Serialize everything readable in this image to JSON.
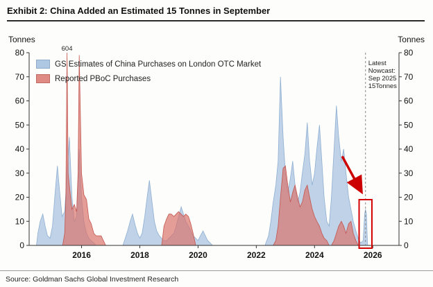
{
  "source": "Source: Goldman Sachs Global Investment Research",
  "chart_data": {
    "type": "area",
    "title": "Exhibit 2: China Added an Estimated 15 Tonnes in September",
    "ylabel_left": "Tonnes",
    "ylabel_right": "Tonnes",
    "ylim": [
      0,
      80
    ],
    "y_ticks": [
      0,
      10,
      20,
      30,
      40,
      50,
      60,
      70,
      80
    ],
    "x_ticks": [
      2016,
      2018,
      2020,
      2022,
      2024,
      2026
    ],
    "x_range": [
      2014.2,
      2026.9
    ],
    "grid": false,
    "legend_position": "top-left",
    "series": [
      {
        "name": "GS Estimates of China Purchases on London OTC Market",
        "color": "#a9c3e0",
        "edge": "#8fafd2",
        "opacity": 0.75,
        "points": [
          [
            2014.45,
            0
          ],
          [
            2014.5,
            5
          ],
          [
            2014.58,
            10
          ],
          [
            2014.67,
            13
          ],
          [
            2014.75,
            8
          ],
          [
            2014.83,
            4
          ],
          [
            2014.92,
            3
          ],
          [
            2015.0,
            8
          ],
          [
            2015.08,
            20
          ],
          [
            2015.17,
            33
          ],
          [
            2015.25,
            22
          ],
          [
            2015.33,
            12
          ],
          [
            2015.42,
            14
          ],
          [
            2015.5,
            30
          ],
          [
            2015.58,
            45
          ],
          [
            2015.67,
            20
          ],
          [
            2015.75,
            10
          ],
          [
            2015.83,
            12
          ],
          [
            2015.92,
            40
          ],
          [
            2016.0,
            20
          ],
          [
            2016.08,
            10
          ],
          [
            2016.17,
            5
          ],
          [
            2016.25,
            3
          ],
          [
            2016.33,
            2
          ],
          [
            2016.42,
            1
          ],
          [
            2016.5,
            0
          ],
          [
            2017.42,
            0
          ],
          [
            2017.5,
            3
          ],
          [
            2017.58,
            6
          ],
          [
            2017.67,
            10
          ],
          [
            2017.75,
            13
          ],
          [
            2017.83,
            9
          ],
          [
            2017.92,
            5
          ],
          [
            2018.0,
            3
          ],
          [
            2018.08,
            5
          ],
          [
            2018.17,
            12
          ],
          [
            2018.25,
            20
          ],
          [
            2018.33,
            27
          ],
          [
            2018.42,
            18
          ],
          [
            2018.5,
            10
          ],
          [
            2018.58,
            6
          ],
          [
            2018.67,
            4
          ],
          [
            2018.75,
            3
          ],
          [
            2018.83,
            2
          ],
          [
            2018.92,
            2
          ],
          [
            2019.0,
            3
          ],
          [
            2019.08,
            4
          ],
          [
            2019.17,
            5
          ],
          [
            2019.25,
            8
          ],
          [
            2019.33,
            12
          ],
          [
            2019.42,
            16
          ],
          [
            2019.5,
            13
          ],
          [
            2019.58,
            10
          ],
          [
            2019.67,
            8
          ],
          [
            2019.75,
            6
          ],
          [
            2019.83,
            4
          ],
          [
            2019.92,
            3
          ],
          [
            2020.0,
            2
          ],
          [
            2020.08,
            4
          ],
          [
            2020.17,
            6
          ],
          [
            2020.25,
            4
          ],
          [
            2020.33,
            2
          ],
          [
            2020.42,
            1
          ],
          [
            2020.5,
            0
          ],
          [
            2022.3,
            0
          ],
          [
            2022.42,
            4
          ],
          [
            2022.5,
            10
          ],
          [
            2022.58,
            18
          ],
          [
            2022.67,
            25
          ],
          [
            2022.75,
            35
          ],
          [
            2022.83,
            70
          ],
          [
            2022.92,
            45
          ],
          [
            2023.0,
            30
          ],
          [
            2023.08,
            22
          ],
          [
            2023.17,
            28
          ],
          [
            2023.25,
            35
          ],
          [
            2023.33,
            25
          ],
          [
            2023.42,
            18
          ],
          [
            2023.5,
            22
          ],
          [
            2023.58,
            30
          ],
          [
            2023.67,
            38
          ],
          [
            2023.75,
            51
          ],
          [
            2023.83,
            35
          ],
          [
            2023.92,
            25
          ],
          [
            2024.0,
            30
          ],
          [
            2024.08,
            40
          ],
          [
            2024.17,
            50
          ],
          [
            2024.25,
            35
          ],
          [
            2024.33,
            20
          ],
          [
            2024.42,
            10
          ],
          [
            2024.5,
            8
          ],
          [
            2024.58,
            20
          ],
          [
            2024.67,
            40
          ],
          [
            2024.75,
            58
          ],
          [
            2024.83,
            45
          ],
          [
            2024.92,
            35
          ],
          [
            2025.0,
            40
          ],
          [
            2025.08,
            30
          ],
          [
            2025.17,
            20
          ],
          [
            2025.25,
            15
          ],
          [
            2025.33,
            10
          ],
          [
            2025.42,
            6
          ],
          [
            2025.5,
            3
          ],
          [
            2025.58,
            1
          ],
          [
            2025.67,
            2
          ],
          [
            2025.72,
            13
          ],
          [
            2025.75,
            15
          ],
          [
            2025.78,
            13
          ],
          [
            2025.82,
            0
          ]
        ]
      },
      {
        "name": "Reported PBoC Purchases",
        "color": "#d9736c",
        "edge": "#c2564f",
        "opacity": 0.7,
        "points": [
          [
            2015.35,
            0
          ],
          [
            2015.42,
            5
          ],
          [
            2015.46,
            20
          ],
          [
            2015.5,
            604
          ],
          [
            2015.54,
            30
          ],
          [
            2015.58,
            25
          ],
          [
            2015.67,
            15
          ],
          [
            2015.75,
            17
          ],
          [
            2015.83,
            14
          ],
          [
            2015.88,
            30
          ],
          [
            2015.92,
            79
          ],
          [
            2016.0,
            30
          ],
          [
            2016.08,
            21
          ],
          [
            2016.17,
            19
          ],
          [
            2016.25,
            11
          ],
          [
            2016.33,
            9
          ],
          [
            2016.42,
            5
          ],
          [
            2016.5,
            4
          ],
          [
            2016.58,
            4
          ],
          [
            2016.67,
            4
          ],
          [
            2016.75,
            2
          ],
          [
            2016.83,
            0
          ],
          [
            2018.75,
            0
          ],
          [
            2018.83,
            8
          ],
          [
            2018.92,
            11
          ],
          [
            2019.0,
            13
          ],
          [
            2019.08,
            13
          ],
          [
            2019.17,
            12
          ],
          [
            2019.25,
            13
          ],
          [
            2019.33,
            14
          ],
          [
            2019.42,
            13
          ],
          [
            2019.5,
            12
          ],
          [
            2019.58,
            13
          ],
          [
            2019.67,
            12
          ],
          [
            2019.75,
            9
          ],
          [
            2019.83,
            5
          ],
          [
            2019.92,
            0
          ],
          [
            2022.58,
            0
          ],
          [
            2022.67,
            2
          ],
          [
            2022.75,
            8
          ],
          [
            2022.83,
            20
          ],
          [
            2022.92,
            32
          ],
          [
            2023.0,
            33
          ],
          [
            2023.08,
            25
          ],
          [
            2023.17,
            18
          ],
          [
            2023.25,
            22
          ],
          [
            2023.33,
            25
          ],
          [
            2023.42,
            20
          ],
          [
            2023.5,
            16
          ],
          [
            2023.58,
            18
          ],
          [
            2023.67,
            23
          ],
          [
            2023.75,
            25
          ],
          [
            2023.83,
            20
          ],
          [
            2023.92,
            15
          ],
          [
            2024.0,
            12
          ],
          [
            2024.08,
            10
          ],
          [
            2024.17,
            8
          ],
          [
            2024.25,
            5
          ],
          [
            2024.33,
            3
          ],
          [
            2024.42,
            2
          ],
          [
            2024.5,
            0
          ],
          [
            2024.58,
            0
          ],
          [
            2024.67,
            2
          ],
          [
            2024.75,
            5
          ],
          [
            2024.83,
            8
          ],
          [
            2024.92,
            10
          ],
          [
            2025.0,
            8
          ],
          [
            2025.08,
            5
          ],
          [
            2025.17,
            9
          ],
          [
            2025.25,
            10
          ],
          [
            2025.33,
            5
          ],
          [
            2025.42,
            2
          ],
          [
            2025.5,
            0
          ]
        ]
      }
    ],
    "annotations": {
      "spike_label": {
        "text": "604",
        "x": 2015.5
      },
      "nowcast_line_x": 2025.75,
      "nowcast_label": {
        "lines": [
          "Latest",
          "Nowcast:",
          "Sep 2025",
          "15Tonnes"
        ]
      },
      "highlight_box": {
        "x1": 2025.53,
        "x2": 2025.97,
        "y_top": 19,
        "color": "#d40000"
      },
      "arrow": {
        "from": [
          2024.95,
          37
        ],
        "to": [
          2025.6,
          22.5
        ],
        "color": "#cc0000"
      }
    }
  }
}
